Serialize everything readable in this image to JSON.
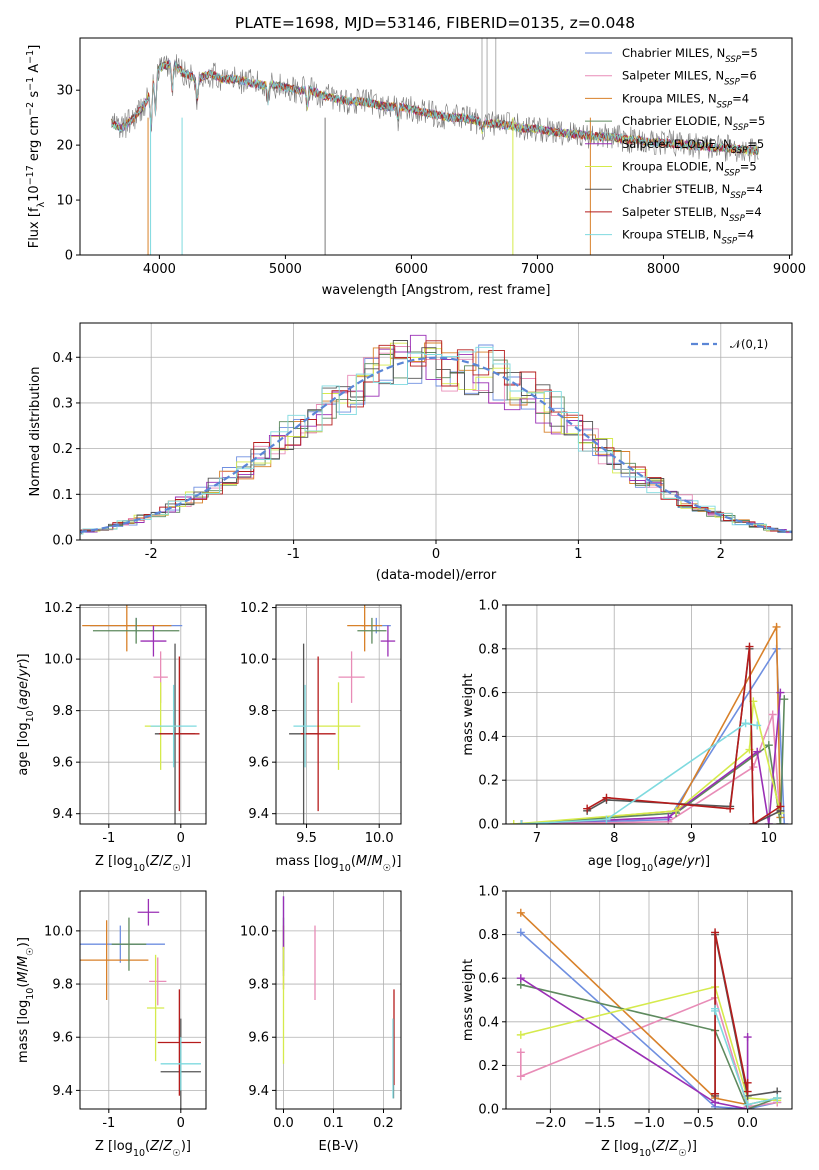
{
  "figure": {
    "title": "PLATE=1698, MJD=53146, FIBERID=0135, z=0.048"
  },
  "legend_models": [
    {
      "label": "Chabrier MILES, N",
      "sub": "SSP",
      "suffix": "=5",
      "color": "#6f8fe0"
    },
    {
      "label": "Salpeter MILES, N",
      "sub": "SSP",
      "suffix": "=6",
      "color": "#e88cb7"
    },
    {
      "label": "Kroupa MILES, N",
      "sub": "SSP",
      "suffix": "=4",
      "color": "#d8812a"
    },
    {
      "label": "Chabrier ELODIE, N",
      "sub": "SSP",
      "suffix": "=5",
      "color": "#5e8a5e"
    },
    {
      "label": "Salpeter ELODIE, N",
      "sub": "SSP",
      "suffix": "=5",
      "color": "#9a2fb5"
    },
    {
      "label": "Kroupa ELODIE, N",
      "sub": "SSP",
      "suffix": "=5",
      "color": "#d5ea4c"
    },
    {
      "label": "Chabrier STELIB, N",
      "sub": "SSP",
      "suffix": "=4",
      "color": "#555555"
    },
    {
      "label": "Salpeter STELIB, N",
      "sub": "SSP",
      "suffix": "=4",
      "color": "#b51c1c"
    },
    {
      "label": "Kroupa STELIB, N",
      "sub": "SSP",
      "suffix": "=4",
      "color": "#7fdadf"
    }
  ],
  "chart_data": [
    {
      "id": "spectrum",
      "type": "line",
      "xlabel": "wavelength [Angstrom, rest frame]",
      "ylabel": "Flux [f_λ 10^-17 erg cm^-2 s^-1 A^-1]",
      "xlim": [
        3370,
        9020
      ],
      "ylim": [
        0,
        39.5
      ],
      "xticks": [
        4000,
        5000,
        6000,
        7000,
        8000,
        9000
      ],
      "yticks": [
        0,
        10,
        20,
        30
      ],
      "series_note": "observed data (grey) and 9 model fits",
      "data_points": [
        [
          3620,
          24
        ],
        [
          3700,
          23
        ],
        [
          3800,
          25
        ],
        [
          3900,
          28
        ],
        [
          3950,
          32
        ],
        [
          4000,
          34
        ],
        [
          4100,
          35
        ],
        [
          4200,
          33
        ],
        [
          4300,
          32
        ],
        [
          4400,
          33
        ],
        [
          4500,
          32
        ],
        [
          4600,
          32
        ],
        [
          4700,
          31.5
        ],
        [
          4800,
          31
        ],
        [
          4900,
          31
        ],
        [
          5000,
          30.5
        ],
        [
          5100,
          30
        ],
        [
          5200,
          30
        ],
        [
          5300,
          29
        ],
        [
          5400,
          28.5
        ],
        [
          5500,
          28
        ],
        [
          5600,
          28
        ],
        [
          5700,
          27.5
        ],
        [
          5800,
          27
        ],
        [
          5900,
          27
        ],
        [
          6000,
          26.5
        ],
        [
          6100,
          26
        ],
        [
          6200,
          25.5
        ],
        [
          6300,
          25
        ],
        [
          6400,
          25
        ],
        [
          6500,
          24.5
        ],
        [
          6600,
          24
        ],
        [
          6700,
          23.8
        ],
        [
          6800,
          23.5
        ],
        [
          6900,
          23
        ],
        [
          7000,
          23
        ],
        [
          7100,
          22.5
        ],
        [
          7200,
          22.2
        ],
        [
          7300,
          22
        ],
        [
          7400,
          21.8
        ],
        [
          7500,
          21.5
        ],
        [
          7600,
          21.5
        ],
        [
          7700,
          21
        ],
        [
          7800,
          21
        ],
        [
          7900,
          20.5
        ],
        [
          8000,
          20.5
        ],
        [
          8100,
          20.2
        ],
        [
          8200,
          20
        ],
        [
          8300,
          19.8
        ],
        [
          8400,
          19.5
        ],
        [
          8500,
          19.5
        ],
        [
          8600,
          19.2
        ],
        [
          8700,
          19
        ],
        [
          8760,
          19
        ]
      ]
    },
    {
      "id": "residuals",
      "type": "step",
      "xlabel": "(data-model)/error",
      "ylabel": "Normed distribution",
      "xlim": [
        -2.5,
        2.5
      ],
      "ylim": [
        0,
        0.475
      ],
      "xticks": [
        -2,
        -1,
        0,
        1,
        2
      ],
      "yticks": [
        0.0,
        0.1,
        0.2,
        0.3,
        0.4
      ],
      "legend": [
        {
          "label": "𝒩(0,1)",
          "style": "dashed",
          "color": "#5b86d6"
        }
      ],
      "reference_curve": "normal pdf, mean 0, sigma 1"
    },
    {
      "id": "age_vs_Z",
      "type": "errorbar",
      "xlabel": "Z [log₁₀(Z/Z☉)]",
      "ylabel": "age [log₁₀(age/yr)]",
      "xlim": [
        -1.4,
        0.35
      ],
      "ylim": [
        9.36,
        10.21
      ],
      "xticks": [
        -1,
        0
      ],
      "yticks": [
        9.4,
        9.6,
        9.8,
        10.0,
        10.2
      ],
      "points": [
        {
          "model": 0,
          "x": -0.62,
          "xerr": 0.64,
          "y": 10.13,
          "yerr": 0.03
        },
        {
          "model": 1,
          "x": -0.28,
          "xerr": 0.1,
          "y": 9.93,
          "yerr": 0.1
        },
        {
          "model": 2,
          "x": -0.75,
          "xerr": 0.62,
          "y": 10.13,
          "yerr": 0.1
        },
        {
          "model": 3,
          "x": -0.62,
          "xerr": 0.6,
          "y": 10.11,
          "yerr": 0.05
        },
        {
          "model": 4,
          "x": -0.38,
          "xerr": 0.18,
          "y": 10.07,
          "yerr": 0.06
        },
        {
          "model": 5,
          "x": -0.28,
          "xerr": 0.22,
          "y": 9.74,
          "yerr": 0.17
        },
        {
          "model": 6,
          "x": -0.08,
          "xerr": 0.28,
          "y": 9.71,
          "yerr": 0.35
        },
        {
          "model": 7,
          "x": -0.02,
          "xerr": 0.28,
          "y": 9.71,
          "yerr": 0.3
        },
        {
          "model": 8,
          "x": -0.1,
          "xerr": 0.32,
          "y": 9.74,
          "yerr": 0.16
        }
      ]
    },
    {
      "id": "age_vs_mass",
      "type": "errorbar",
      "xlabel": "mass [log₁₀(M/M☉)]",
      "ylabel": "",
      "xlim": [
        9.29,
        10.15
      ],
      "ylim": [
        9.36,
        10.21
      ],
      "xticks": [
        9.5,
        10.0
      ],
      "yticks": [
        9.4,
        9.6,
        9.8,
        10.0,
        10.2
      ],
      "points": [
        {
          "model": 0,
          "x": 9.98,
          "xerr": 0.1,
          "y": 10.13,
          "yerr": 0.03
        },
        {
          "model": 1,
          "x": 9.81,
          "xerr": 0.09,
          "y": 9.93,
          "yerr": 0.1
        },
        {
          "model": 2,
          "x": 9.9,
          "xerr": 0.12,
          "y": 10.13,
          "yerr": 0.1
        },
        {
          "model": 3,
          "x": 9.95,
          "xerr": 0.1,
          "y": 10.11,
          "yerr": 0.05
        },
        {
          "model": 4,
          "x": 10.06,
          "xerr": 0.05,
          "y": 10.07,
          "yerr": 0.06
        },
        {
          "model": 5,
          "x": 9.72,
          "xerr": 0.15,
          "y": 9.74,
          "yerr": 0.17
        },
        {
          "model": 6,
          "x": 9.48,
          "xerr": 0.1,
          "y": 9.71,
          "yerr": 0.35
        },
        {
          "model": 7,
          "x": 9.58,
          "xerr": 0.12,
          "y": 9.71,
          "yerr": 0.3
        },
        {
          "model": 8,
          "x": 9.49,
          "xerr": 0.08,
          "y": 9.74,
          "yerr": 0.16
        }
      ]
    },
    {
      "id": "weight_vs_age",
      "type": "line",
      "xlabel": "age [log₁₀(age/yr)]",
      "ylabel": "mass weight",
      "xlim": [
        6.6,
        10.3
      ],
      "ylim": [
        0.0,
        1.0
      ],
      "xticks": [
        7,
        8,
        9,
        10
      ],
      "yticks": [
        0.0,
        0.2,
        0.4,
        0.6,
        0.8,
        1.0
      ],
      "series": [
        {
          "model": 0,
          "x": [
            6.8,
            8.7,
            10.1,
            10.2
          ],
          "y": [
            0.0,
            0.02,
            0.8,
            0.0
          ]
        },
        {
          "model": 1,
          "x": [
            6.8,
            8.7,
            9.8,
            10.05,
            10.15
          ],
          "y": [
            0.0,
            0.01,
            0.26,
            0.5,
            0.0
          ]
        },
        {
          "model": 2,
          "x": [
            6.8,
            8.8,
            10.1,
            10.15
          ],
          "y": [
            0.0,
            0.06,
            0.9,
            0.03
          ]
        },
        {
          "model": 3,
          "x": [
            6.8,
            8.8,
            10.0,
            10.15,
            10.2
          ],
          "y": [
            0.0,
            0.05,
            0.36,
            0.0,
            0.57
          ]
        },
        {
          "model": 4,
          "x": [
            6.8,
            8.7,
            9.85,
            10.0,
            10.15
          ],
          "y": [
            0.0,
            0.03,
            0.33,
            0.0,
            0.6
          ]
        },
        {
          "model": 5,
          "x": [
            6.7,
            8.8,
            9.75,
            9.8,
            10.15
          ],
          "y": [
            0.0,
            0.06,
            0.34,
            0.56,
            0.05
          ]
        },
        {
          "model": 6,
          "x": [
            7.65,
            7.9,
            9.5,
            9.75,
            9.8,
            10.15
          ],
          "y": [
            0.06,
            0.11,
            0.08,
            0.8,
            0.0,
            0.06
          ]
        },
        {
          "model": 7,
          "x": [
            7.65,
            7.9,
            9.5,
            9.75,
            9.8,
            10.15
          ],
          "y": [
            0.07,
            0.12,
            0.07,
            0.81,
            0.0,
            0.08
          ]
        },
        {
          "model": 8,
          "x": [
            6.8,
            7.9,
            9.7,
            9.85
          ],
          "y": [
            0.0,
            0.02,
            0.46,
            0.45
          ]
        }
      ]
    },
    {
      "id": "mass_vs_Z",
      "type": "errorbar",
      "xlabel": "Z [log₁₀(Z/Z☉)]",
      "ylabel": "mass [log₁₀(M/M☉)]",
      "xlim": [
        -1.4,
        0.35
      ],
      "ylim": [
        9.33,
        10.15
      ],
      "xticks": [
        -1,
        0
      ],
      "yticks": [
        9.4,
        9.6,
        9.8,
        10.0
      ],
      "points": [
        {
          "model": 0,
          "x": -0.84,
          "xerr": 0.62,
          "y": 9.95,
          "yerr": 0.07
        },
        {
          "model": 1,
          "x": -0.32,
          "xerr": 0.12,
          "y": 9.81,
          "yerr": 0.09
        },
        {
          "model": 2,
          "x": -1.03,
          "xerr": 0.58,
          "y": 9.89,
          "yerr": 0.15
        },
        {
          "model": 3,
          "x": -0.72,
          "xerr": 0.24,
          "y": 9.95,
          "yerr": 0.1
        },
        {
          "model": 4,
          "x": -0.45,
          "xerr": 0.15,
          "y": 10.07,
          "yerr": 0.05
        },
        {
          "model": 5,
          "x": -0.35,
          "xerr": 0.12,
          "y": 9.71,
          "yerr": 0.2
        },
        {
          "model": 6,
          "x": 0.0,
          "xerr": 0.28,
          "y": 9.47,
          "yerr": 0.2
        },
        {
          "model": 7,
          "x": -0.02,
          "xerr": 0.3,
          "y": 9.58,
          "yerr": 0.2
        },
        {
          "model": 8,
          "x": 0.0,
          "xerr": 0.28,
          "y": 9.5,
          "yerr": 0.1
        }
      ]
    },
    {
      "id": "mass_vs_EBV",
      "type": "errorbar",
      "xlabel": "E(B-V)",
      "ylabel": "",
      "xlim": [
        -0.015,
        0.235
      ],
      "ylim": [
        9.33,
        10.15
      ],
      "xticks": [
        0.0,
        0.1,
        0.2
      ],
      "yticks": [
        9.4,
        9.6,
        9.8,
        10.0
      ],
      "points": [
        {
          "model": 0,
          "x": 0.0,
          "xerr": 0.0,
          "y": 9.98,
          "yerr": 0.15
        },
        {
          "model": 1,
          "x": 0.063,
          "xerr": 0.0,
          "y": 9.88,
          "yerr": 0.14
        },
        {
          "model": 2,
          "x": 0.0,
          "xerr": 0.0,
          "y": 9.9,
          "yerr": 0.12
        },
        {
          "model": 3,
          "x": 0.0,
          "xerr": 0.0,
          "y": 9.95,
          "yerr": 0.1
        },
        {
          "model": 4,
          "x": 0.0,
          "xerr": 0.0,
          "y": 10.03,
          "yerr": 0.1
        },
        {
          "model": 5,
          "x": 0.0,
          "xerr": 0.0,
          "y": 9.72,
          "yerr": 0.22
        },
        {
          "model": 6,
          "x": 0.22,
          "xerr": 0.0,
          "y": 9.52,
          "yerr": 0.15
        },
        {
          "model": 7,
          "x": 0.221,
          "xerr": 0.0,
          "y": 9.6,
          "yerr": 0.18
        },
        {
          "model": 8,
          "x": 0.219,
          "xerr": 0.0,
          "y": 9.52,
          "yerr": 0.15
        }
      ]
    },
    {
      "id": "weight_vs_Z",
      "type": "line",
      "xlabel": "Z [log₁₀(Z/Z☉)]",
      "ylabel": "mass weight",
      "xlim": [
        -2.45,
        0.45
      ],
      "ylim": [
        0.0,
        1.0
      ],
      "xticks": [
        -2.0,
        -1.5,
        -1.0,
        -0.5,
        0.0
      ],
      "yticks": [
        0.0,
        0.2,
        0.4,
        0.6,
        0.8,
        1.0
      ],
      "series": [
        {
          "model": 0,
          "x": [
            -2.3,
            -0.33,
            0.0,
            0.3
          ],
          "y": [
            0.81,
            0.01,
            0.0,
            0.03
          ]
        },
        {
          "model": 1,
          "x": [
            -2.3,
            -2.3,
            -0.33,
            0.0,
            0.3
          ],
          "y": [
            0.26,
            0.15,
            0.51,
            0.01,
            0.03
          ]
        },
        {
          "model": 2,
          "x": [
            -2.3,
            -0.33,
            0.0,
            0.3
          ],
          "y": [
            0.9,
            0.05,
            0.02,
            0.05
          ]
        },
        {
          "model": 3,
          "x": [
            -2.3,
            -0.33,
            0.0,
            0.3
          ],
          "y": [
            0.57,
            0.36,
            0.0,
            0.05
          ]
        },
        {
          "model": 4,
          "x": [
            -2.3,
            -0.33,
            0.0,
            0.0
          ],
          "y": [
            0.6,
            0.03,
            0.0,
            0.33
          ]
        },
        {
          "model": 5,
          "x": [
            -2.3,
            -0.33,
            0.0,
            0.3
          ],
          "y": [
            0.34,
            0.56,
            0.05,
            0.04
          ]
        },
        {
          "model": 6,
          "x": [
            -0.33,
            -0.33,
            0.0,
            0.3
          ],
          "y": [
            0.06,
            0.8,
            0.06,
            0.08
          ]
        },
        {
          "model": 7,
          "x": [
            -0.33,
            -0.33,
            0.0,
            0.0
          ],
          "y": [
            0.07,
            0.81,
            0.08,
            0.12
          ]
        },
        {
          "model": 8,
          "x": [
            -0.33,
            -0.33,
            0.0,
            0.3
          ],
          "y": [
            0.46,
            0.45,
            0.02,
            0.05
          ]
        }
      ]
    }
  ]
}
